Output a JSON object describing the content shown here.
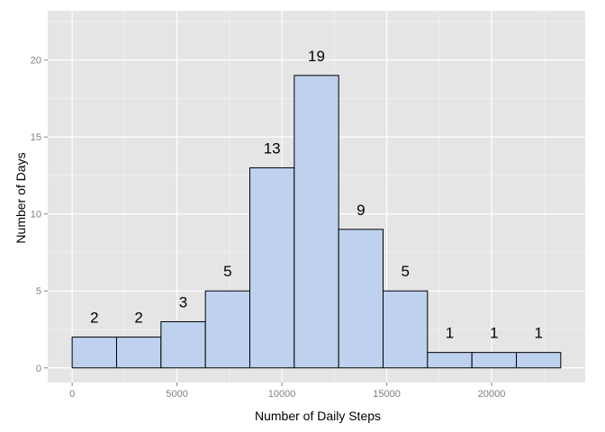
{
  "chart_data": {
    "type": "bar",
    "subtype": "histogram",
    "xlabel": "Number of Daily Steps",
    "ylabel": "Number of Days",
    "bins": [
      {
        "x0": 0,
        "x1": 2118,
        "count": 2
      },
      {
        "x0": 2118,
        "x1": 4236,
        "count": 2
      },
      {
        "x0": 4236,
        "x1": 6354,
        "count": 3
      },
      {
        "x0": 6354,
        "x1": 8472,
        "count": 5
      },
      {
        "x0": 8472,
        "x1": 10590,
        "count": 13
      },
      {
        "x0": 10590,
        "x1": 12708,
        "count": 19
      },
      {
        "x0": 12708,
        "x1": 14826,
        "count": 9
      },
      {
        "x0": 14826,
        "x1": 16944,
        "count": 5
      },
      {
        "x0": 16944,
        "x1": 19062,
        "count": 1
      },
      {
        "x0": 19062,
        "x1": 21180,
        "count": 1
      },
      {
        "x0": 21180,
        "x1": 23298,
        "count": 1
      }
    ],
    "data_labels": [
      "2",
      "2",
      "3",
      "5",
      "13",
      "19",
      "9",
      "5",
      "1",
      "1",
      "1"
    ],
    "xticks": [
      0,
      5000,
      10000,
      15000,
      20000
    ],
    "xtick_labels": [
      "0",
      "5000",
      "10000",
      "15000",
      "20000"
    ],
    "yticks": [
      0,
      5,
      10,
      15,
      20
    ],
    "ytick_labels": [
      "0",
      "5",
      "10",
      "15",
      "20"
    ],
    "xlim": [
      -1165,
      24463
    ],
    "ylim": [
      -0.95,
      23.2
    ],
    "grid": true,
    "legend": "none",
    "colors": {
      "panel_background": "#e5e5e5",
      "grid_major": "#ffffff",
      "grid_minor": "#f2f2f2",
      "bar_fill": "#bed1ee",
      "bar_stroke": "#000000"
    }
  }
}
